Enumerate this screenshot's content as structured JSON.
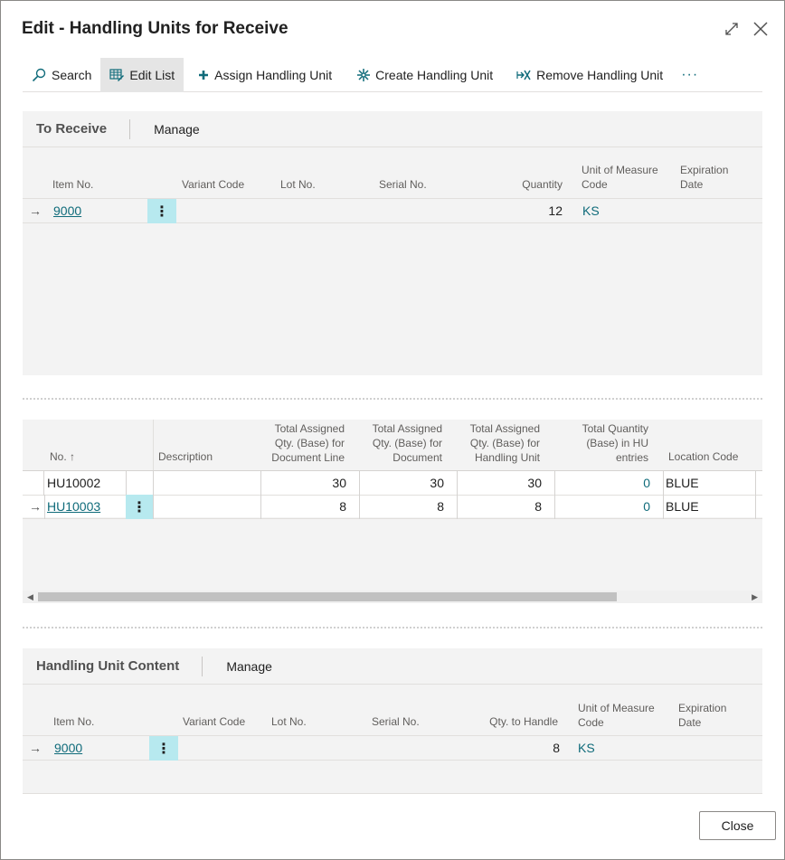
{
  "window": {
    "title": "Edit - Handling Units for Receive"
  },
  "toolbar": {
    "search": "Search",
    "edit_list": "Edit List",
    "assign": "Assign Handling Unit",
    "create": "Create Handling Unit",
    "remove": "Remove Handling Unit",
    "more": "···"
  },
  "to_receive": {
    "title": "To Receive",
    "manage": "Manage",
    "columns": {
      "item_no": "Item No.",
      "variant_code": "Variant Code",
      "lot_no": "Lot No.",
      "serial_no": "Serial No.",
      "quantity": "Quantity",
      "uom_1": "Unit of Measure",
      "uom_2": "Code",
      "exp_1": "Expiration",
      "exp_2": "Date"
    },
    "rows": [
      {
        "item_no": "9000",
        "quantity": "12",
        "uom": "KS"
      }
    ]
  },
  "handling_units": {
    "columns": {
      "no": "No. ↑",
      "description": "Description",
      "tad_line_1": "Total Assigned",
      "tad_line_2": "Qty. (Base) for",
      "tad_line_3": "Document Line",
      "tad_doc_1": "Total Assigned",
      "tad_doc_2": "Qty. (Base) for",
      "tad_doc_3": "Document",
      "tad_hu_1": "Total Assigned",
      "tad_hu_2": "Qty. (Base) for",
      "tad_hu_3": "Handling Unit",
      "tq_1": "Total Quantity",
      "tq_2": "(Base) in HU",
      "tq_3": "entries",
      "location": "Location Code"
    },
    "rows": [
      {
        "no": "HU10002",
        "doc_line": "30",
        "doc": "30",
        "hu": "30",
        "entries": "0",
        "location": "BLUE"
      },
      {
        "no": "HU10003",
        "doc_line": "8",
        "doc": "8",
        "hu": "8",
        "entries": "0",
        "location": "BLUE"
      }
    ]
  },
  "hu_content": {
    "title": "Handling Unit Content",
    "manage": "Manage",
    "columns": {
      "item_no": "Item No.",
      "variant_code": "Variant Code",
      "lot_no": "Lot No.",
      "serial_no": "Serial No.",
      "qty_to_handle": "Qty. to Handle",
      "uom_1": "Unit of Measure",
      "uom_2": "Code",
      "exp_1": "Expiration",
      "exp_2": "Date"
    },
    "rows": [
      {
        "item_no": "9000",
        "qty": "8",
        "uom": "KS"
      }
    ]
  },
  "footer": {
    "close": "Close"
  }
}
